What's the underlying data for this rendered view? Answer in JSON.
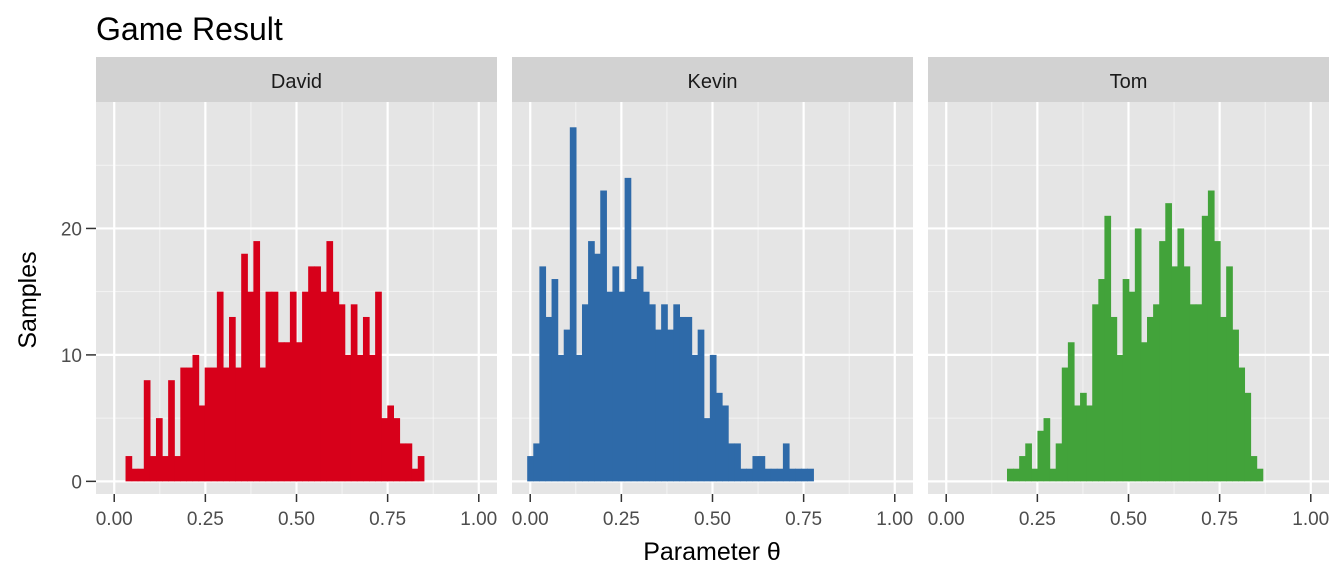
{
  "chart_data": {
    "type": "bar",
    "title": "Game Result",
    "xlabel": "Parameter θ",
    "ylabel": "Samples",
    "xlim": [
      -0.05,
      1.05
    ],
    "ylim": [
      -1,
      30
    ],
    "x_ticks": [
      "0.00",
      "0.25",
      "0.50",
      "0.75",
      "1.00"
    ],
    "x_tick_values": [
      0,
      0.25,
      0.5,
      0.75,
      1.0
    ],
    "y_ticks": [
      "0",
      "10",
      "20"
    ],
    "y_tick_values": [
      0,
      10,
      20
    ],
    "bin_width": 0.0167,
    "grid": true,
    "colors": {
      "panel_bg": "#e5e5e5",
      "strip_bg": "#d2d2d2",
      "grid": "#ffffff"
    },
    "panels": [
      {
        "name": "David",
        "color": "#d7001a",
        "bin_start": 0.031,
        "values": [
          2,
          1,
          1,
          8,
          2,
          5,
          2,
          8,
          2,
          9,
          9,
          10,
          6,
          9,
          9,
          15,
          9,
          13,
          9,
          18,
          15,
          19,
          9,
          15,
          15,
          11,
          11,
          15,
          11,
          15,
          17,
          17,
          15,
          19,
          15,
          14,
          10,
          14,
          10,
          13,
          10,
          15,
          5,
          6,
          5,
          3,
          3,
          1,
          2
        ]
      },
      {
        "name": "Kevin",
        "color": "#2e6aa9",
        "bin_start": -0.0083,
        "values": [
          2,
          3,
          17,
          13,
          16,
          10,
          12,
          28,
          10,
          14,
          19,
          18,
          23,
          15,
          17,
          15,
          24,
          16,
          17,
          15,
          14,
          12,
          14,
          12,
          14,
          13,
          13,
          10,
          12,
          5,
          10,
          7,
          6,
          3,
          3,
          1,
          1,
          2,
          2,
          1,
          1,
          1,
          3,
          1,
          1,
          1,
          1,
          0
        ]
      },
      {
        "name": "Tom",
        "color": "#42a33a",
        "bin_start": 0.1667,
        "values": [
          1,
          1,
          2,
          3,
          1,
          4,
          5,
          1,
          3,
          9,
          11,
          6,
          7,
          6,
          14,
          16,
          21,
          13,
          10,
          16,
          15,
          20,
          11,
          13,
          14,
          19,
          22,
          17,
          20,
          17,
          14,
          14,
          21,
          23,
          19,
          13,
          17,
          12,
          9,
          7,
          2,
          1
        ]
      }
    ]
  }
}
